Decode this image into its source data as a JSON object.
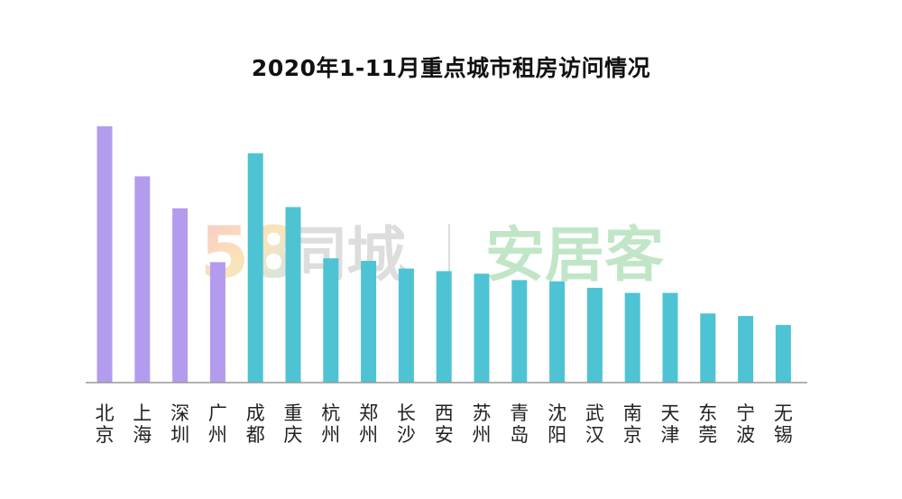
{
  "chart_data": {
    "type": "bar",
    "title": "2020年1-11月重点城市租房访问情况",
    "categories": [
      "北京",
      "上海",
      "深圳",
      "广州",
      "成都",
      "重庆",
      "杭州",
      "郑州",
      "长沙",
      "西安",
      "苏州",
      "青岛",
      "沈阳",
      "武汉",
      "南京",
      "天津",
      "东莞",
      "宁波",
      "无锡"
    ],
    "values": [
      100,
      80.5,
      68,
      47,
      89.5,
      68.5,
      48.5,
      47.5,
      44.5,
      43.5,
      42.5,
      40,
      39.5,
      37,
      35,
      35,
      27,
      26,
      22.5
    ],
    "ylim": [
      0,
      100
    ],
    "xlabel": "",
    "ylabel": "",
    "colors": {
      "highlight": "#b39cee",
      "default": "#4dc3d4",
      "highlight_categories": [
        "北京",
        "上海",
        "深圳",
        "广州"
      ],
      "axis": "#999999"
    },
    "grid": false,
    "legend": "none"
  },
  "watermark": {
    "brand1_digits": "58",
    "brand1_text": "同城",
    "brand2_text": "安居客"
  }
}
